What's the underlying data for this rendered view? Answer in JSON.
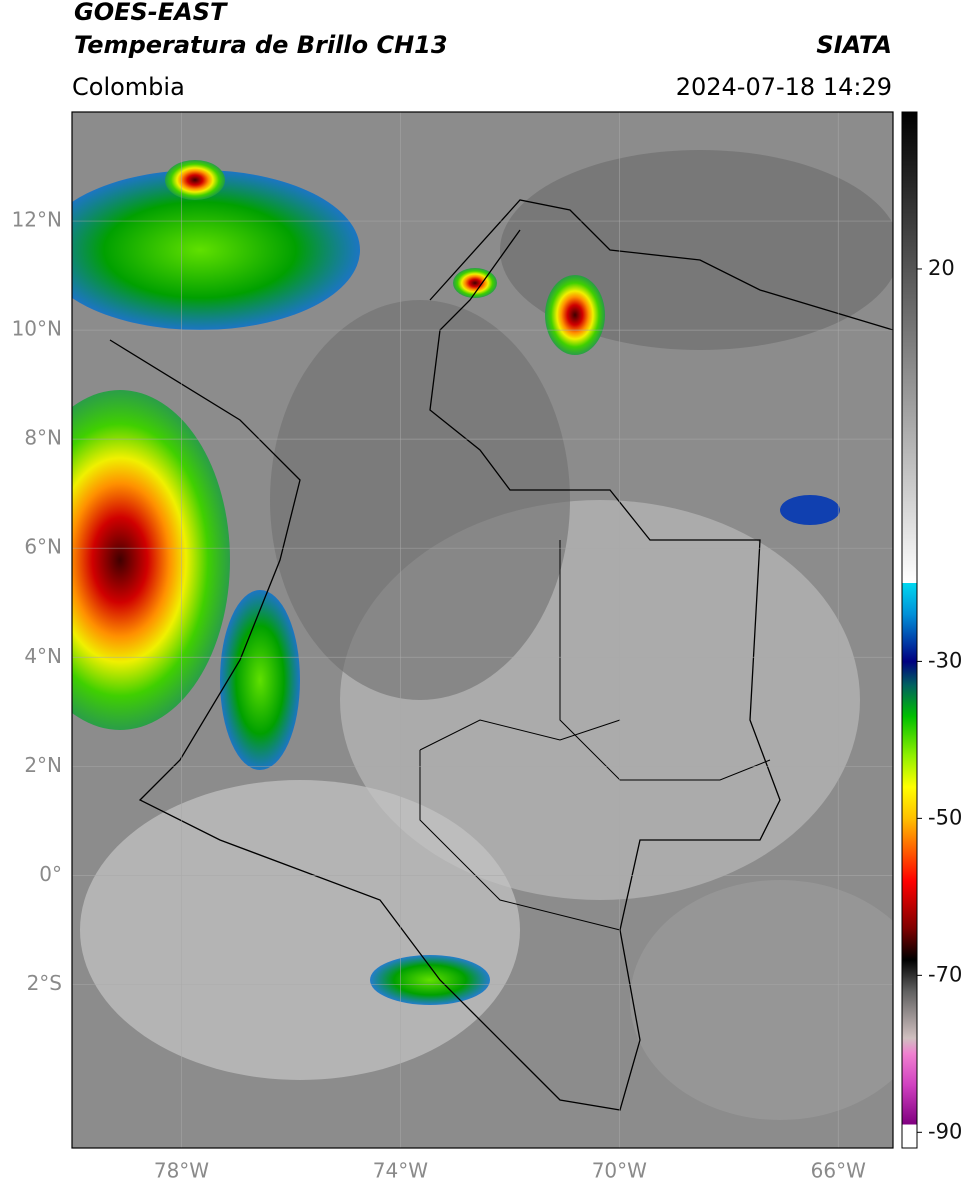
{
  "header": {
    "title": "GOES-EAST",
    "subtitle": "Temperatura de Brillo CH13",
    "source": "SIATA",
    "region": "Colombia",
    "timestamp": "2024-07-18 14:29"
  },
  "map": {
    "lonlim": [
      -80,
      -65
    ],
    "latlim": [
      -5,
      14
    ],
    "grid": true,
    "lon_ticks": [
      {
        "value": -78,
        "label": "78°W"
      },
      {
        "value": -74,
        "label": "74°W"
      },
      {
        "value": -70,
        "label": "70°W"
      },
      {
        "value": -66,
        "label": "66°W"
      }
    ],
    "lat_ticks": [
      {
        "value": 12,
        "label": "12°N"
      },
      {
        "value": 10,
        "label": "10°N"
      },
      {
        "value": 8,
        "label": "8°N"
      },
      {
        "value": 6,
        "label": "6°N"
      },
      {
        "value": 4,
        "label": "4°N"
      },
      {
        "value": 2,
        "label": "2°N"
      },
      {
        "value": 0,
        "label": "0°"
      },
      {
        "value": -2,
        "label": "2°S"
      }
    ]
  },
  "colorbar": {
    "lim": [
      -92,
      40
    ],
    "ticks": [
      20,
      -30,
      -50,
      -70,
      -90
    ],
    "colormap": [
      {
        "value": 40,
        "color": "#000000"
      },
      {
        "value": -20,
        "color": "#ffffff"
      },
      {
        "value": -20,
        "color": "#00d8f0"
      },
      {
        "value": -24,
        "color": "#0090d8"
      },
      {
        "value": -28,
        "color": "#0030a0"
      },
      {
        "value": -30,
        "color": "#000080"
      },
      {
        "value": -33,
        "color": "#006060"
      },
      {
        "value": -37,
        "color": "#00c000"
      },
      {
        "value": -42,
        "color": "#90f000"
      },
      {
        "value": -46,
        "color": "#ffff00"
      },
      {
        "value": -50,
        "color": "#ffc000"
      },
      {
        "value": -54,
        "color": "#ff6000"
      },
      {
        "value": -58,
        "color": "#ff0000"
      },
      {
        "value": -64,
        "color": "#800000"
      },
      {
        "value": -68,
        "color": "#000000"
      },
      {
        "value": -72,
        "color": "#606060"
      },
      {
        "value": -78,
        "color": "#d0c0c0"
      },
      {
        "value": -80,
        "color": "#f080d0"
      },
      {
        "value": -84,
        "color": "#d040c0"
      },
      {
        "value": -89,
        "color": "#800080"
      },
      {
        "value": -89,
        "color": "#ffffff"
      },
      {
        "value": -92,
        "color": "#ffffff"
      }
    ]
  }
}
